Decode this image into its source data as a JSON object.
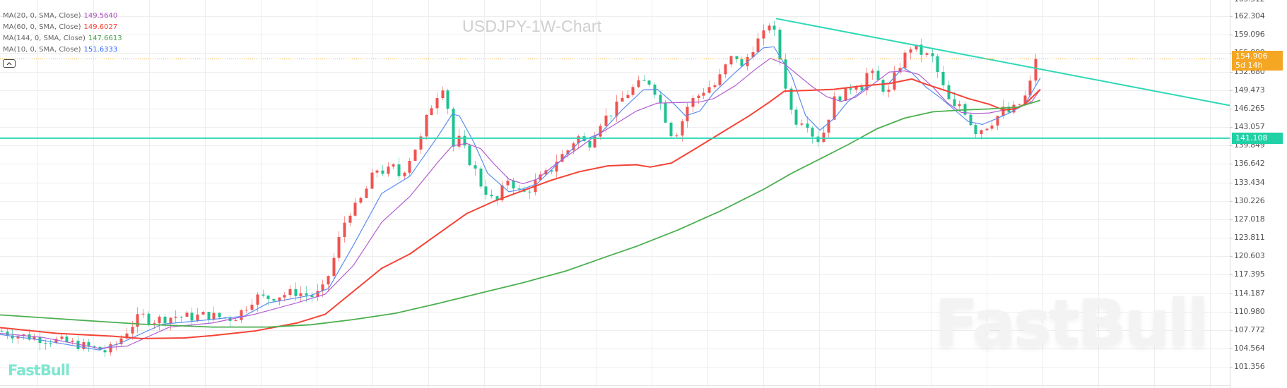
{
  "title": "USDJPY-1W-Chart",
  "brand": {
    "logo_text": "FastBull",
    "watermark_text": "FastBull"
  },
  "legend": [
    {
      "label": "MA(20, 0, SMA, Close)",
      "value": "149.5640",
      "color": "#ab47bc"
    },
    {
      "label": "MA(60, 0, SMA, Close)",
      "value": "149.6027",
      "color": "#f44336"
    },
    {
      "label": "MA(144, 0, SMA, Close)",
      "value": "147.6613",
      "color": "#43a047"
    },
    {
      "label": "MA(10, 0, SMA, Close)",
      "value": "151.6333",
      "color": "#2962ff"
    }
  ],
  "price_tag": {
    "price": "154.906",
    "countdown": "5d 14h",
    "color": "#f5a623"
  },
  "support_tag": {
    "price": "141.108",
    "color": "#1fd1a5"
  },
  "chart_data": {
    "type": "candlestick",
    "title": "USDJPY-1W-Chart",
    "symbol": "USDJPY",
    "timeframe": "1W",
    "xlabel": "",
    "ylabel": "",
    "y_ticks": [
      "162.304",
      "159.096",
      "155.888",
      "152.680",
      "149.473",
      "146.265",
      "143.057",
      "139.849",
      "136.642",
      "133.434",
      "130.226",
      "127.018",
      "123.811",
      "120.603",
      "117.395",
      "114.187",
      "110.980",
      "107.772",
      "104.564",
      "101.356"
    ],
    "ylim": [
      99.4,
      164.3
    ],
    "grid": true,
    "up_color": "#ef5350",
    "down_color": "#1fc190",
    "last_price": 154.906,
    "close_path": [
      [
        0,
        107.6
      ],
      [
        20,
        107.0
      ],
      [
        40,
        106.6
      ],
      [
        60,
        106.3
      ],
      [
        80,
        105.9
      ],
      [
        100,
        105.5
      ],
      [
        120,
        104.9
      ],
      [
        140,
        104.4
      ],
      [
        150,
        104.0
      ],
      [
        160,
        104.8
      ],
      [
        170,
        106.2
      ],
      [
        180,
        107.8
      ],
      [
        190,
        109.2
      ],
      [
        200,
        110.3
      ],
      [
        215,
        109.4
      ],
      [
        230,
        109.8
      ],
      [
        250,
        110.2
      ],
      [
        270,
        110.0
      ],
      [
        290,
        110.4
      ],
      [
        310,
        110.0
      ],
      [
        330,
        109.8
      ],
      [
        345,
        111.5
      ],
      [
        360,
        113.6
      ],
      [
        375,
        113.3
      ],
      [
        395,
        113.8
      ],
      [
        420,
        114.4
      ],
      [
        440,
        113.6
      ],
      [
        455,
        114.4
      ],
      [
        465,
        117.6
      ],
      [
        475,
        121.5
      ],
      [
        485,
        126.0
      ],
      [
        495,
        128.5
      ],
      [
        505,
        129.2
      ],
      [
        515,
        131.5
      ],
      [
        525,
        134.2
      ],
      [
        535,
        136.0
      ],
      [
        545,
        135.0
      ],
      [
        555,
        136.2
      ],
      [
        565,
        134.5
      ],
      [
        575,
        136.5
      ],
      [
        585,
        139.0
      ],
      [
        595,
        141.0
      ],
      [
        605,
        145.5
      ],
      [
        615,
        148.0
      ],
      [
        625,
        150.5
      ],
      [
        632,
        148.0
      ],
      [
        640,
        139.5
      ],
      [
        650,
        141.0
      ],
      [
        660,
        138.0
      ],
      [
        670,
        136.0
      ],
      [
        680,
        133.0
      ],
      [
        690,
        131.5
      ],
      [
        700,
        129.5
      ],
      [
        710,
        132.0
      ],
      [
        720,
        134.5
      ],
      [
        730,
        132.0
      ],
      [
        740,
        131.5
      ],
      [
        750,
        132.5
      ],
      [
        760,
        133.8
      ],
      [
        770,
        134.6
      ],
      [
        780,
        135.8
      ],
      [
        790,
        137.8
      ],
      [
        800,
        138.5
      ],
      [
        810,
        140.5
      ],
      [
        820,
        141.5
      ],
      [
        830,
        139.5
      ],
      [
        840,
        142.0
      ],
      [
        850,
        144.2
      ],
      [
        860,
        145.0
      ],
      [
        870,
        146.2
      ],
      [
        880,
        148.0
      ],
      [
        890,
        149.3
      ],
      [
        900,
        150.2
      ],
      [
        910,
        150.8
      ],
      [
        920,
        150.9
      ],
      [
        930,
        148.5
      ],
      [
        940,
        145.0
      ],
      [
        950,
        141.8
      ],
      [
        960,
        142.5
      ],
      [
        970,
        146.3
      ],
      [
        980,
        147.8
      ],
      [
        990,
        148.8
      ],
      [
        1000,
        150.0
      ],
      [
        1010,
        150.2
      ],
      [
        1020,
        152.0
      ],
      [
        1030,
        154.5
      ],
      [
        1040,
        155.6
      ],
      [
        1050,
        153.0
      ],
      [
        1060,
        156.2
      ],
      [
        1070,
        157.8
      ],
      [
        1080,
        159.0
      ],
      [
        1090,
        161.8
      ],
      [
        1098,
        158.0
      ],
      [
        1108,
        152.0
      ],
      [
        1118,
        146.0
      ],
      [
        1128,
        143.8
      ],
      [
        1138,
        144.8
      ],
      [
        1148,
        142.0
      ],
      [
        1158,
        140.8
      ],
      [
        1168,
        143.0
      ],
      [
        1178,
        147.5
      ],
      [
        1188,
        148.5
      ],
      [
        1198,
        149.0
      ],
      [
        1208,
        151.0
      ],
      [
        1218,
        150.0
      ],
      [
        1228,
        152.8
      ],
      [
        1238,
        151.5
      ],
      [
        1248,
        150.0
      ],
      [
        1258,
        149.0
      ],
      [
        1268,
        153.0
      ],
      [
        1278,
        155.0
      ],
      [
        1288,
        157.0
      ],
      [
        1298,
        156.4
      ],
      [
        1308,
        155.5
      ],
      [
        1318,
        155.2
      ],
      [
        1328,
        152.0
      ],
      [
        1338,
        148.5
      ],
      [
        1348,
        146.0
      ],
      [
        1358,
        147.2
      ],
      [
        1368,
        145.2
      ],
      [
        1378,
        142.3
      ],
      [
        1388,
        142.8
      ],
      [
        1398,
        143.5
      ],
      [
        1408,
        144.5
      ],
      [
        1418,
        146.0
      ],
      [
        1428,
        145.5
      ],
      [
        1438,
        146.6
      ],
      [
        1448,
        147.8
      ],
      [
        1458,
        150.8
      ],
      [
        1465,
        153.6
      ],
      [
        1472,
        154.9
      ]
    ],
    "ma_series": [
      {
        "name": "MA(10)",
        "color": "#5b8def",
        "width": 1.2,
        "points": [
          [
            0,
            107.0
          ],
          [
            60,
            106.0
          ],
          [
            140,
            104.3
          ],
          [
            170,
            105.5
          ],
          [
            230,
            108.8
          ],
          [
            290,
            109.5
          ],
          [
            345,
            110.2
          ],
          [
            380,
            112.5
          ],
          [
            440,
            113.8
          ],
          [
            465,
            115.0
          ],
          [
            500,
            122.5
          ],
          [
            540,
            131.5
          ],
          [
            580,
            134.5
          ],
          [
            620,
            141.5
          ],
          [
            640,
            145.3
          ],
          [
            650,
            145.0
          ],
          [
            670,
            140.5
          ],
          [
            690,
            135.0
          ],
          [
            720,
            131.8
          ],
          [
            740,
            132.3
          ],
          [
            760,
            133.2
          ],
          [
            790,
            136.8
          ],
          [
            820,
            140.5
          ],
          [
            850,
            142.0
          ],
          [
            880,
            146.0
          ],
          [
            910,
            149.5
          ],
          [
            930,
            149.6
          ],
          [
            950,
            147.5
          ],
          [
            970,
            145.0
          ],
          [
            990,
            145.8
          ],
          [
            1010,
            149.0
          ],
          [
            1040,
            152.5
          ],
          [
            1080,
            156.8
          ],
          [
            1095,
            157.0
          ],
          [
            1120,
            152.0
          ],
          [
            1140,
            145.0
          ],
          [
            1160,
            142.5
          ],
          [
            1180,
            144.5
          ],
          [
            1200,
            147.5
          ],
          [
            1230,
            150.3
          ],
          [
            1258,
            150.7
          ],
          [
            1278,
            153.4
          ],
          [
            1290,
            152.5
          ],
          [
            1310,
            150.0
          ],
          [
            1330,
            148.2
          ],
          [
            1350,
            146.1
          ],
          [
            1370,
            144.0
          ],
          [
            1390,
            143.5
          ],
          [
            1410,
            144.5
          ],
          [
            1430,
            145.6
          ],
          [
            1450,
            147.0
          ],
          [
            1472,
            151.6
          ]
        ]
      },
      {
        "name": "MA(20)",
        "color": "#b15dd0",
        "width": 1.2,
        "points": [
          [
            0,
            107.2
          ],
          [
            60,
            106.5
          ],
          [
            140,
            104.6
          ],
          [
            180,
            105.0
          ],
          [
            240,
            108.3
          ],
          [
            300,
            109.0
          ],
          [
            360,
            110.5
          ],
          [
            420,
            112.5
          ],
          [
            460,
            114.0
          ],
          [
            500,
            119.0
          ],
          [
            540,
            126.5
          ],
          [
            580,
            131.0
          ],
          [
            620,
            137.0
          ],
          [
            640,
            139.8
          ],
          [
            660,
            140.2
          ],
          [
            680,
            139.3
          ],
          [
            700,
            136.5
          ],
          [
            720,
            134.0
          ],
          [
            740,
            133.2
          ],
          [
            760,
            134.0
          ],
          [
            780,
            136.0
          ],
          [
            800,
            137.8
          ],
          [
            820,
            139.5
          ],
          [
            840,
            141.3
          ],
          [
            870,
            143.5
          ],
          [
            900,
            145.8
          ],
          [
            930,
            147.2
          ],
          [
            960,
            147.3
          ],
          [
            990,
            147.4
          ],
          [
            1010,
            148.0
          ],
          [
            1040,
            150.2
          ],
          [
            1070,
            153.2
          ],
          [
            1090,
            155.0
          ],
          [
            1110,
            154.0
          ],
          [
            1130,
            152.0
          ],
          [
            1150,
            150.0
          ],
          [
            1170,
            148.3
          ],
          [
            1190,
            147.5
          ],
          [
            1210,
            148.2
          ],
          [
            1230,
            150.0
          ],
          [
            1258,
            152.6
          ],
          [
            1280,
            152.8
          ],
          [
            1300,
            152.2
          ],
          [
            1320,
            150.0
          ],
          [
            1340,
            147.3
          ],
          [
            1360,
            145.6
          ],
          [
            1380,
            145.4
          ],
          [
            1400,
            145.5
          ],
          [
            1420,
            146.0
          ],
          [
            1440,
            146.3
          ],
          [
            1460,
            147.5
          ],
          [
            1472,
            149.6
          ]
        ]
      },
      {
        "name": "MA(60)",
        "color": "#f44336",
        "width": 2,
        "points": [
          [
            0,
            108.2
          ],
          [
            80,
            107.2
          ],
          [
            160,
            106.7
          ],
          [
            200,
            106.3
          ],
          [
            260,
            106.4
          ],
          [
            300,
            106.8
          ],
          [
            360,
            107.6
          ],
          [
            420,
            109.0
          ],
          [
            460,
            110.5
          ],
          [
            500,
            114.5
          ],
          [
            540,
            118.5
          ],
          [
            580,
            121.0
          ],
          [
            620,
            124.5
          ],
          [
            660,
            128.0
          ],
          [
            700,
            130.2
          ],
          [
            740,
            132.0
          ],
          [
            780,
            133.8
          ],
          [
            820,
            135.3
          ],
          [
            860,
            136.3
          ],
          [
            900,
            136.5
          ],
          [
            920,
            136.1
          ],
          [
            950,
            136.8
          ],
          [
            980,
            139.0
          ],
          [
            1020,
            142.0
          ],
          [
            1060,
            145.0
          ],
          [
            1090,
            147.5
          ],
          [
            1110,
            149.3
          ],
          [
            1140,
            149.4
          ],
          [
            1180,
            149.6
          ],
          [
            1220,
            150.2
          ],
          [
            1258,
            150.6
          ],
          [
            1290,
            151.4
          ],
          [
            1310,
            150.5
          ],
          [
            1340,
            149.3
          ],
          [
            1370,
            148.0
          ],
          [
            1400,
            147.0
          ],
          [
            1420,
            146.0
          ],
          [
            1435,
            146.2
          ],
          [
            1450,
            147.0
          ],
          [
            1472,
            149.6
          ]
        ]
      },
      {
        "name": "MA(144)",
        "color": "#4caf50",
        "width": 1.8,
        "points": [
          [
            0,
            110.4
          ],
          [
            100,
            109.6
          ],
          [
            200,
            108.8
          ],
          [
            300,
            108.3
          ],
          [
            380,
            108.3
          ],
          [
            440,
            108.7
          ],
          [
            500,
            109.6
          ],
          [
            560,
            110.7
          ],
          [
            620,
            112.4
          ],
          [
            680,
            114.2
          ],
          [
            740,
            116.0
          ],
          [
            800,
            118.0
          ],
          [
            860,
            120.6
          ],
          [
            900,
            122.3
          ],
          [
            960,
            125.2
          ],
          [
            1020,
            128.5
          ],
          [
            1080,
            132.2
          ],
          [
            1120,
            135.0
          ],
          [
            1160,
            137.5
          ],
          [
            1200,
            140.0
          ],
          [
            1240,
            142.7
          ],
          [
            1280,
            144.6
          ],
          [
            1320,
            145.7
          ],
          [
            1360,
            146.0
          ],
          [
            1400,
            146.2
          ],
          [
            1440,
            146.5
          ],
          [
            1472,
            147.7
          ]
        ]
      }
    ],
    "trendlines": [
      {
        "name": "descending-resistance",
        "color": "#2ed8b6",
        "from": [
          1098,
          161.9
        ],
        "to": [
          1740,
          146.8
        ]
      },
      {
        "name": "horizontal-support",
        "color": "#2ed8b6",
        "from": [
          0,
          141.108
        ],
        "to": [
          1740,
          141.108
        ]
      }
    ]
  }
}
